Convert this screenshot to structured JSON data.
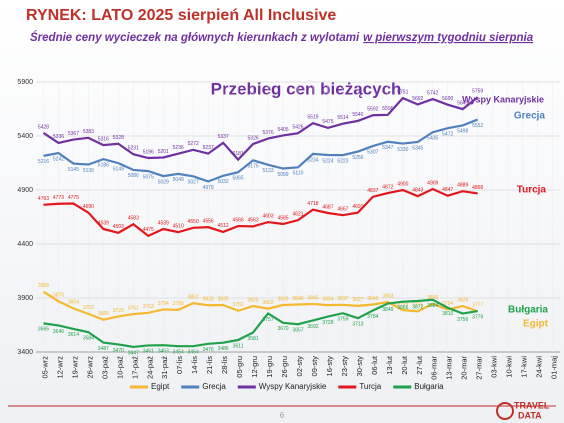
{
  "chart_data": {
    "type": "line",
    "title": "RYNEK: LATO 2025 sierpień All Inclusive",
    "subtitle": [
      "Średnie ceny wycieczek na głównych kierunkach z wylotami",
      "w pierwszym tygodniu sierpnia"
    ],
    "annotation": "Przebieg cen bieżących",
    "page_number": "6",
    "logo": [
      "TRAVEL",
      "DATA"
    ],
    "categories": [
      "05-wrz",
      "12-wrz",
      "19-wrz",
      "26-wrz",
      "03-paź",
      "10-paź",
      "17-paź",
      "24-paź",
      "31-paź",
      "07-lis",
      "14-lis",
      "21-lis",
      "28-lis",
      "05-gru",
      "12-gru",
      "19-gru",
      "26-gru",
      "02-sty",
      "09-sty",
      "16-sty",
      "23-sty",
      "30-sty",
      "06-lut",
      "13-lut",
      "20-lut",
      "27-lut",
      "06-mar",
      "13-mar",
      "20-mar",
      "27-mar",
      "03-kwi",
      "10-kwi",
      "17-kwi",
      "24-kwi",
      "01-maj"
    ],
    "ylim": [
      3400,
      5900
    ],
    "yticks": [
      3400,
      3900,
      4400,
      4900,
      5400,
      5900
    ],
    "grid": true,
    "series": [
      {
        "name": "Egipt",
        "color": "#f5b82e",
        "values": [
          3958,
          3870,
          3804,
          3753,
          3699,
          3729,
          3751,
          3763,
          3794,
          3790,
          3852,
          3833,
          3835,
          3782,
          3826,
          3802,
          3835,
          3840,
          3845,
          3834,
          3837,
          3827,
          3840,
          3863,
          3789,
          3776,
          3846,
          3794,
          3826,
          3777,
          null,
          null,
          null,
          null,
          null
        ]
      },
      {
        "name": "Grecja",
        "color": "#4f81bd",
        "values": [
          5216,
          5242,
          5145,
          5136,
          5186,
          5149,
          5086,
          5075,
          5029,
          5049,
          5027,
          4979,
          5032,
          5065,
          5175,
          5133,
          5099,
          5110,
          5234,
          5224,
          5223,
          5256,
          5307,
          5347,
          5330,
          5345,
          5435,
          5472,
          5498,
          5552,
          null,
          null,
          null,
          null,
          null
        ]
      },
      {
        "name": "Wyspy Kanaryjskie",
        "color": "#7030a0",
        "values": [
          5428,
          5336,
          5367,
          5383,
          5316,
          5328,
          5231,
          5196,
          5201,
          5236,
          5272,
          5237,
          5337,
          5181,
          5326,
          5376,
          5405,
          5426,
          5519,
          5475,
          5514,
          5540,
          5592,
          5596,
          5751,
          5692,
          5742,
          5690,
          5649,
          5759,
          null,
          null,
          null,
          null,
          null
        ]
      },
      {
        "name": "Turcja",
        "color": "#e3161b",
        "values": [
          4763,
          4773,
          4775,
          4690,
          4539,
          4503,
          4583,
          4475,
          4539,
          4510,
          4550,
          4556,
          4512,
          4566,
          4563,
          4603,
          4585,
          4621,
          4718,
          4687,
          4667,
          4691,
          4837,
          4872,
          4900,
          4843,
          4909,
          4847,
          4889,
          4868,
          null,
          null,
          null,
          null,
          null
        ]
      },
      {
        "name": "Bułgaria",
        "color": "#1fa24a",
        "values": [
          3665,
          3646,
          3614,
          3584,
          3487,
          3470,
          3447,
          3461,
          3463,
          3454,
          3454,
          3476,
          3486,
          3511,
          3581,
          3757,
          3670,
          3657,
          3692,
          3728,
          3759,
          3713,
          3784,
          3849,
          3866,
          3872,
          3884,
          3810,
          3756,
          3779,
          null,
          null,
          null,
          null,
          null
        ]
      }
    ]
  }
}
